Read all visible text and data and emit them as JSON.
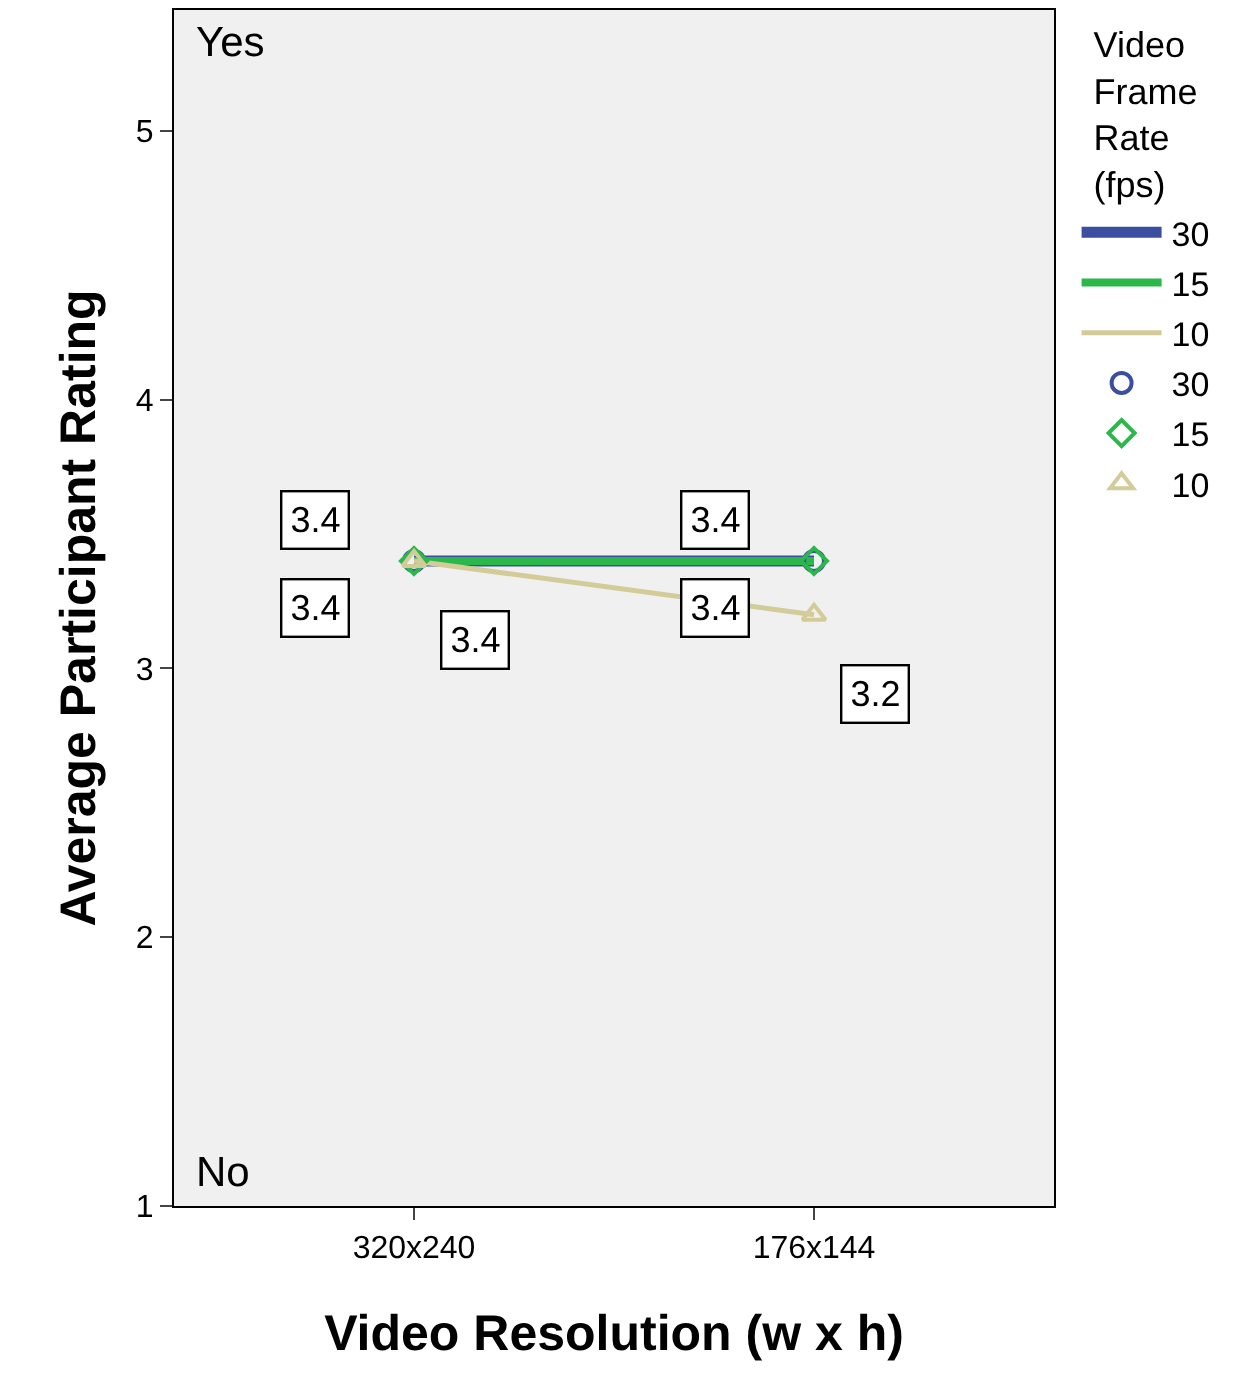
{
  "chart_data": {
    "type": "line",
    "xlabel": "Video Resolution (w x h)",
    "ylabel": "Average Participant Rating",
    "legend_title": "Video Frame Rate (fps)",
    "categories": [
      "320x240",
      "176x144"
    ],
    "series": [
      {
        "name": "30",
        "color": "#3b4ea0",
        "marker": "circle",
        "values": [
          3.4,
          3.4
        ]
      },
      {
        "name": "15",
        "color": "#2bb84a",
        "marker": "diamond",
        "values": [
          3.4,
          3.4
        ]
      },
      {
        "name": "10",
        "color": "#d3cc98",
        "marker": "triangle",
        "values": [
          3.4,
          3.2
        ]
      }
    ],
    "ylim": [
      1,
      5.45
    ],
    "yticks": [
      1,
      2,
      3,
      4,
      5
    ],
    "grid": false,
    "legend": "right",
    "line_style": "solid",
    "data_labels": true,
    "annotations": [
      "Yes",
      "No"
    ]
  }
}
